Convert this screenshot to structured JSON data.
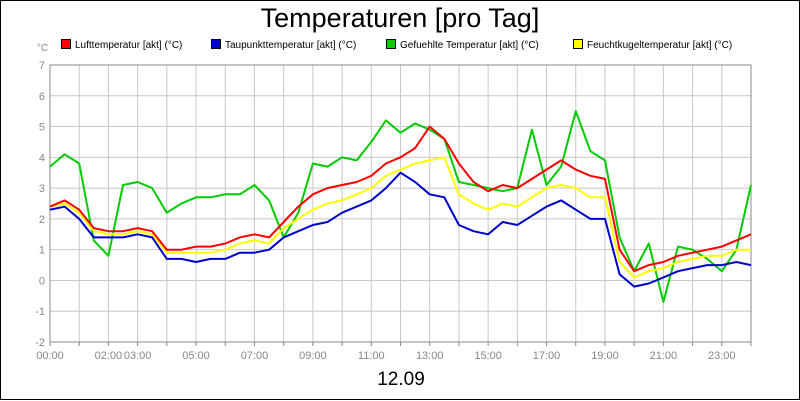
{
  "chart_data": {
    "type": "line",
    "title": "Temperaturen [pro Tag]",
    "unit_label": "°C",
    "date_label": "12.09",
    "xlabel": "",
    "ylabel": "",
    "grid": true,
    "legend_position": "top",
    "ylim": [
      -2,
      7
    ],
    "yticks": [
      "-2",
      "-1",
      "0",
      "1",
      "2",
      "3",
      "4",
      "5",
      "6",
      "7"
    ],
    "xlim": [
      0,
      24
    ],
    "xticks": [
      {
        "h": 0,
        "label": "00:00"
      },
      {
        "h": 2,
        "label": "02:00"
      },
      {
        "h": 3,
        "label": "03:00"
      },
      {
        "h": 5,
        "label": "05:00"
      },
      {
        "h": 7,
        "label": "07:00"
      },
      {
        "h": 9,
        "label": "09:00"
      },
      {
        "h": 11,
        "label": "11:00"
      },
      {
        "h": 13,
        "label": "13:00"
      },
      {
        "h": 15,
        "label": "15:00"
      },
      {
        "h": 17,
        "label": "17:00"
      },
      {
        "h": 19,
        "label": "19:00"
      },
      {
        "h": 21,
        "label": "21:00"
      },
      {
        "h": 23,
        "label": "23:00"
      }
    ],
    "x": [
      0,
      0.5,
      1,
      1.5,
      2,
      2.5,
      3,
      3.5,
      4,
      4.5,
      5,
      5.5,
      6,
      6.5,
      7,
      7.5,
      8,
      8.5,
      9,
      9.5,
      10,
      10.5,
      11,
      11.5,
      12,
      12.5,
      13,
      13.5,
      14,
      14.5,
      15,
      15.5,
      16,
      16.5,
      17,
      17.5,
      18,
      18.5,
      19,
      19.5,
      20,
      20.5,
      21,
      21.5,
      22,
      22.5,
      23,
      23.5,
      24
    ],
    "series": [
      {
        "name": "Lufttemperatur [akt] (°C)",
        "color": "#ff0000",
        "values": [
          2.4,
          2.6,
          2.3,
          1.7,
          1.6,
          1.6,
          1.7,
          1.6,
          1.0,
          1.0,
          1.1,
          1.1,
          1.2,
          1.4,
          1.5,
          1.4,
          1.9,
          2.4,
          2.8,
          3.0,
          3.1,
          3.2,
          3.4,
          3.8,
          4.0,
          4.3,
          5.0,
          4.6,
          3.8,
          3.2,
          2.9,
          3.1,
          3.0,
          3.3,
          3.6,
          3.9,
          3.6,
          3.4,
          3.3,
          1.0,
          0.3,
          0.5,
          0.6,
          0.8,
          0.9,
          1.0,
          1.1,
          1.3,
          1.5
        ]
      },
      {
        "name": "Taupunkttemperatur [akt] (°C)",
        "color": "#0000cc",
        "values": [
          2.3,
          2.4,
          2.0,
          1.4,
          1.4,
          1.4,
          1.5,
          1.4,
          0.7,
          0.7,
          0.6,
          0.7,
          0.7,
          0.9,
          0.9,
          1.0,
          1.4,
          1.6,
          1.8,
          1.9,
          2.2,
          2.4,
          2.6,
          3.0,
          3.5,
          3.2,
          2.8,
          2.7,
          1.8,
          1.6,
          1.5,
          1.9,
          1.8,
          2.1,
          2.4,
          2.6,
          2.3,
          2.0,
          2.0,
          0.2,
          -0.2,
          -0.1,
          0.1,
          0.3,
          0.4,
          0.5,
          0.5,
          0.6,
          0.5
        ]
      },
      {
        "name": "Gefuehlte Temperatur [akt] (°C)",
        "color": "#00cc00",
        "values": [
          3.7,
          4.1,
          3.8,
          1.3,
          0.8,
          3.1,
          3.2,
          3.0,
          2.2,
          2.5,
          2.7,
          2.7,
          2.8,
          2.8,
          3.1,
          2.6,
          1.4,
          2.2,
          3.8,
          3.7,
          4.0,
          3.9,
          4.5,
          5.2,
          4.8,
          5.1,
          4.9,
          4.6,
          3.2,
          3.1,
          3.0,
          2.9,
          3.0,
          4.9,
          3.1,
          3.7,
          5.5,
          4.2,
          3.9,
          1.4,
          0.3,
          1.2,
          -0.7,
          1.1,
          1.0,
          0.7,
          0.3,
          1.0,
          3.1
        ]
      },
      {
        "name": "Feuchtkugeltemperatur [akt] (°C)",
        "color": "#ffff00",
        "values": [
          2.4,
          2.5,
          2.2,
          1.6,
          1.5,
          1.5,
          1.6,
          1.5,
          0.9,
          0.9,
          0.9,
          0.9,
          1.0,
          1.2,
          1.3,
          1.2,
          1.7,
          2.0,
          2.3,
          2.5,
          2.6,
          2.8,
          3.0,
          3.4,
          3.6,
          3.8,
          3.9,
          4.0,
          2.8,
          2.5,
          2.3,
          2.5,
          2.4,
          2.7,
          3.0,
          3.1,
          3.0,
          2.7,
          2.7,
          0.6,
          0.1,
          0.3,
          0.4,
          0.6,
          0.7,
          0.8,
          0.8,
          1.0,
          1.0
        ]
      }
    ]
  }
}
